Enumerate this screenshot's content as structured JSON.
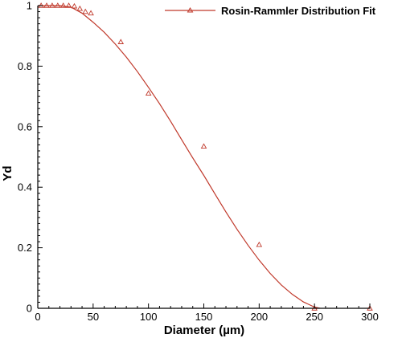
{
  "chart_data": {
    "type": "line",
    "xlabel": "Diameter (µm)",
    "ylabel": "Yd",
    "xlim": [
      0,
      300
    ],
    "ylim": [
      0,
      1
    ],
    "x_ticks": [
      "0",
      "50",
      "100",
      "150",
      "200",
      "250",
      "300"
    ],
    "y_ticks": [
      "0",
      "0.2",
      "0.4",
      "0.6",
      "0.8",
      "1"
    ],
    "grid": false,
    "legend_position": "top-right",
    "colors": {
      "series": "#c0392b",
      "axis": "#000000"
    },
    "series": [
      {
        "name": "Rosin-Rammler Distribution Fit",
        "kind": "fit-curve",
        "x": [
          0,
          10,
          20,
          30,
          40,
          50,
          60,
          70,
          80,
          90,
          100,
          110,
          120,
          130,
          140,
          150,
          160,
          170,
          180,
          190,
          200,
          210,
          220,
          230,
          240,
          250,
          255
        ],
        "y": [
          1.0,
          1.0,
          1.0,
          0.995,
          0.975,
          0.945,
          0.912,
          0.873,
          0.83,
          0.782,
          0.73,
          0.676,
          0.618,
          0.557,
          0.497,
          0.439,
          0.378,
          0.318,
          0.261,
          0.208,
          0.159,
          0.115,
          0.077,
          0.046,
          0.021,
          0.004,
          0.0
        ]
      },
      {
        "name": "",
        "kind": "measured",
        "marker": "triangle",
        "x": [
          3,
          8,
          13,
          18,
          23,
          28,
          33,
          38,
          43,
          48,
          75,
          100,
          150,
          200,
          250,
          300
        ],
        "y": [
          1.0,
          1.0,
          1.0,
          1.0,
          1.0,
          1.0,
          0.998,
          0.99,
          0.98,
          0.975,
          0.88,
          0.71,
          0.535,
          0.21,
          0.0,
          0.0
        ]
      }
    ]
  }
}
